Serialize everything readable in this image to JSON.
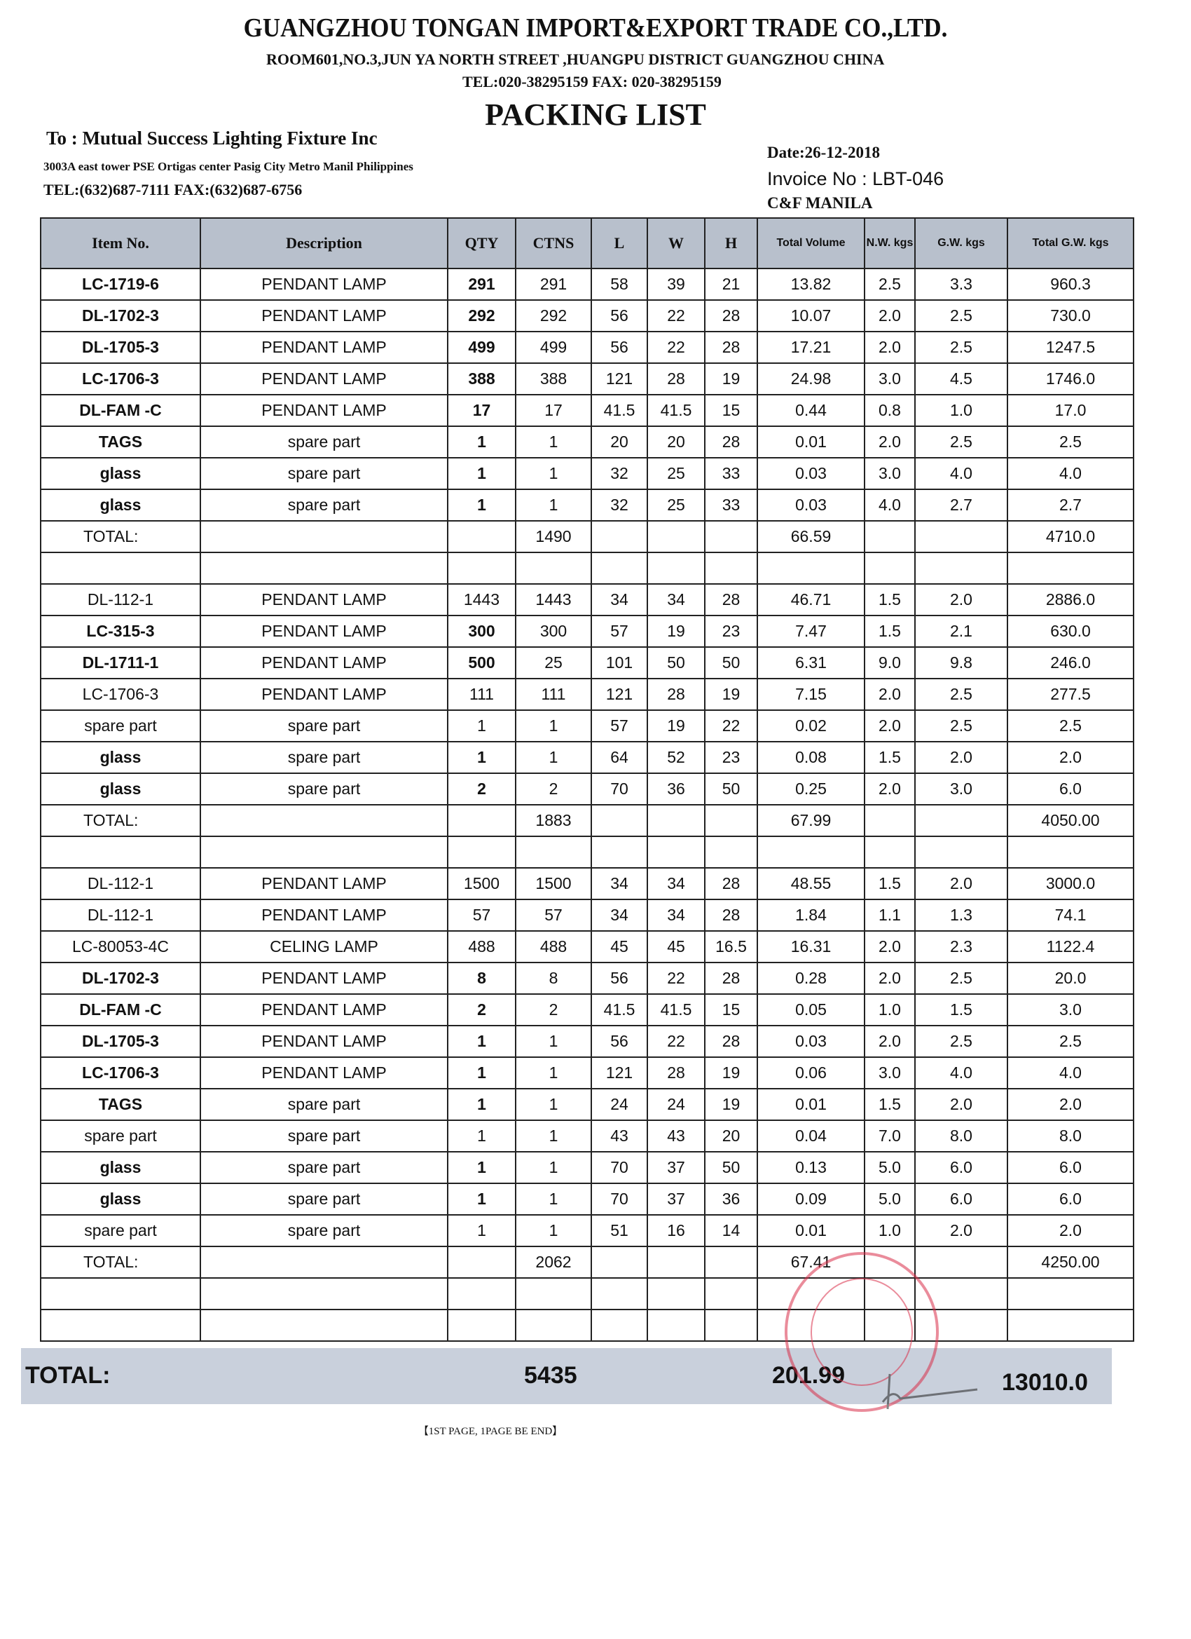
{
  "header": {
    "company": "GUANGZHOU TONGAN IMPORT&EXPORT TRADE CO.,LTD.",
    "address": "ROOM601,NO.3,JUN YA NORTH STREET ,HUANGPU DISTRICT GUANGZHOU CHINA",
    "contact": "TEL:020-38295159 FAX: 020-38295159",
    "title": "PACKING LIST"
  },
  "recipient": {
    "to": "To : Mutual Success Lighting Fixture Inc",
    "address": "3003A east tower PSE Ortigas center Pasig City Metro Manil Philippines",
    "contact": "TEL:(632)687-7111  FAX:(632)687-6756"
  },
  "meta": {
    "date": "Date:26-12-2018",
    "invoice": "Invoice No : LBT-046",
    "terms": "C&F MANILA"
  },
  "columns": [
    "Item No.",
    "Description",
    "QTY",
    "CTNS",
    "L",
    "W",
    "H",
    "Total Volume",
    "N.W. kgs",
    "G.W. kgs",
    "Total G.W. kgs"
  ],
  "rows": [
    {
      "b": 1,
      "c": [
        "LC-1719-6",
        "PENDANT LAMP",
        "291",
        "291",
        "58",
        "39",
        "21",
        "13.82",
        "2.5",
        "3.3",
        "960.3"
      ]
    },
    {
      "b": 1,
      "c": [
        "DL-1702-3",
        "PENDANT LAMP",
        "292",
        "292",
        "56",
        "22",
        "28",
        "10.07",
        "2.0",
        "2.5",
        "730.0"
      ]
    },
    {
      "b": 1,
      "c": [
        "DL-1705-3",
        "PENDANT LAMP",
        "499",
        "499",
        "56",
        "22",
        "28",
        "17.21",
        "2.0",
        "2.5",
        "1247.5"
      ]
    },
    {
      "b": 1,
      "c": [
        "LC-1706-3",
        "PENDANT LAMP",
        "388",
        "388",
        "121",
        "28",
        "19",
        "24.98",
        "3.0",
        "4.5",
        "1746.0"
      ]
    },
    {
      "b": 1,
      "c": [
        "DL-FAM -C",
        "PENDANT LAMP",
        "17",
        "17",
        "41.5",
        "41.5",
        "15",
        "0.44",
        "0.8",
        "1.0",
        "17.0"
      ]
    },
    {
      "b": 1,
      "c": [
        "TAGS",
        "spare part",
        "1",
        "1",
        "20",
        "20",
        "28",
        "0.01",
        "2.0",
        "2.5",
        "2.5"
      ]
    },
    {
      "b": 1,
      "c": [
        "glass",
        "spare part",
        "1",
        "1",
        "32",
        "25",
        "33",
        "0.03",
        "3.0",
        "4.0",
        "4.0"
      ]
    },
    {
      "b": 1,
      "c": [
        "glass",
        "spare part",
        "1",
        "1",
        "32",
        "25",
        "33",
        "0.03",
        "4.0",
        "2.7",
        "2.7"
      ]
    },
    {
      "b": 0,
      "c": [
        "TOTAL:",
        "",
        "",
        "1490",
        "",
        "",
        "",
        "66.59",
        "",
        "",
        "4710.0"
      ]
    },
    {
      "b": 0,
      "c": [
        "",
        "",
        "",
        "",
        "",
        "",
        "",
        "",
        "",
        "",
        ""
      ]
    },
    {
      "b": 0,
      "c": [
        "DL-112-1",
        "PENDANT LAMP",
        "1443",
        "1443",
        "34",
        "34",
        "28",
        "46.71",
        "1.5",
        "2.0",
        "2886.0"
      ]
    },
    {
      "b": 1,
      "c": [
        "LC-315-3",
        "PENDANT LAMP",
        "300",
        "300",
        "57",
        "19",
        "23",
        "7.47",
        "1.5",
        "2.1",
        "630.0"
      ]
    },
    {
      "b": 1,
      "c": [
        "DL-1711-1",
        "PENDANT LAMP",
        "500",
        "25",
        "101",
        "50",
        "50",
        "6.31",
        "9.0",
        "9.8",
        "246.0"
      ]
    },
    {
      "b": 0,
      "c": [
        "LC-1706-3",
        "PENDANT LAMP",
        "111",
        "111",
        "121",
        "28",
        "19",
        "7.15",
        "2.0",
        "2.5",
        "277.5"
      ]
    },
    {
      "b": 0,
      "c": [
        "spare part",
        "spare part",
        "1",
        "1",
        "57",
        "19",
        "22",
        "0.02",
        "2.0",
        "2.5",
        "2.5"
      ]
    },
    {
      "b": 1,
      "c": [
        "glass",
        "spare part",
        "1",
        "1",
        "64",
        "52",
        "23",
        "0.08",
        "1.5",
        "2.0",
        "2.0"
      ]
    },
    {
      "b": 1,
      "c": [
        "glass",
        "spare part",
        "2",
        "2",
        "70",
        "36",
        "50",
        "0.25",
        "2.0",
        "3.0",
        "6.0"
      ]
    },
    {
      "b": 0,
      "c": [
        "TOTAL:",
        "",
        "",
        "1883",
        "",
        "",
        "",
        "67.99",
        "",
        "",
        "4050.00"
      ]
    },
    {
      "b": 0,
      "c": [
        "",
        "",
        "",
        "",
        "",
        "",
        "",
        "",
        "",
        "",
        ""
      ]
    },
    {
      "b": 0,
      "c": [
        "DL-112-1",
        "PENDANT LAMP",
        "1500",
        "1500",
        "34",
        "34",
        "28",
        "48.55",
        "1.5",
        "2.0",
        "3000.0"
      ]
    },
    {
      "b": 0,
      "c": [
        "DL-112-1",
        "PENDANT LAMP",
        "57",
        "57",
        "34",
        "34",
        "28",
        "1.84",
        "1.1",
        "1.3",
        "74.1"
      ]
    },
    {
      "b": 0,
      "c": [
        "LC-80053-4C",
        "CELING LAMP",
        "488",
        "488",
        "45",
        "45",
        "16.5",
        "16.31",
        "2.0",
        "2.3",
        "1122.4"
      ]
    },
    {
      "b": 1,
      "c": [
        "DL-1702-3",
        "PENDANT LAMP",
        "8",
        "8",
        "56",
        "22",
        "28",
        "0.28",
        "2.0",
        "2.5",
        "20.0"
      ]
    },
    {
      "b": 1,
      "c": [
        "DL-FAM -C",
        "PENDANT LAMP",
        "2",
        "2",
        "41.5",
        "41.5",
        "15",
        "0.05",
        "1.0",
        "1.5",
        "3.0"
      ]
    },
    {
      "b": 1,
      "c": [
        "DL-1705-3",
        "PENDANT LAMP",
        "1",
        "1",
        "56",
        "22",
        "28",
        "0.03",
        "2.0",
        "2.5",
        "2.5"
      ]
    },
    {
      "b": 1,
      "c": [
        "LC-1706-3",
        "PENDANT LAMP",
        "1",
        "1",
        "121",
        "28",
        "19",
        "0.06",
        "3.0",
        "4.0",
        "4.0"
      ]
    },
    {
      "b": 1,
      "c": [
        "TAGS",
        "spare part",
        "1",
        "1",
        "24",
        "24",
        "19",
        "0.01",
        "1.5",
        "2.0",
        "2.0"
      ]
    },
    {
      "b": 0,
      "c": [
        "spare part",
        "spare part",
        "1",
        "1",
        "43",
        "43",
        "20",
        "0.04",
        "7.0",
        "8.0",
        "8.0"
      ]
    },
    {
      "b": 1,
      "c": [
        "glass",
        "spare part",
        "1",
        "1",
        "70",
        "37",
        "50",
        "0.13",
        "5.0",
        "6.0",
        "6.0"
      ]
    },
    {
      "b": 1,
      "c": [
        "glass",
        "spare part",
        "1",
        "1",
        "70",
        "37",
        "36",
        "0.09",
        "5.0",
        "6.0",
        "6.0"
      ]
    },
    {
      "b": 0,
      "c": [
        "spare part",
        "spare part",
        "1",
        "1",
        "51",
        "16",
        "14",
        "0.01",
        "1.0",
        "2.0",
        "2.0"
      ]
    },
    {
      "b": 0,
      "c": [
        "TOTAL:",
        "",
        "",
        "2062",
        "",
        "",
        "",
        "67.41",
        "",
        "",
        "4250.00"
      ]
    },
    {
      "b": 0,
      "c": [
        "",
        "",
        "",
        "",
        "",
        "",
        "",
        "",
        "",
        "",
        ""
      ]
    },
    {
      "b": 0,
      "c": [
        "",
        "",
        "",
        "",
        "",
        "",
        "",
        "",
        "",
        "",
        ""
      ]
    }
  ],
  "grand_total": {
    "label": "TOTAL:",
    "ctns": "5435",
    "volume": "201.99",
    "gross_weight": "13010.0"
  },
  "footer": "【1ST PAGE, 1PAGE BE END】",
  "colors": {
    "header_bg": "#b8c0cc",
    "total_bg": "#c9d0dc",
    "stamp": "#d9304a"
  }
}
